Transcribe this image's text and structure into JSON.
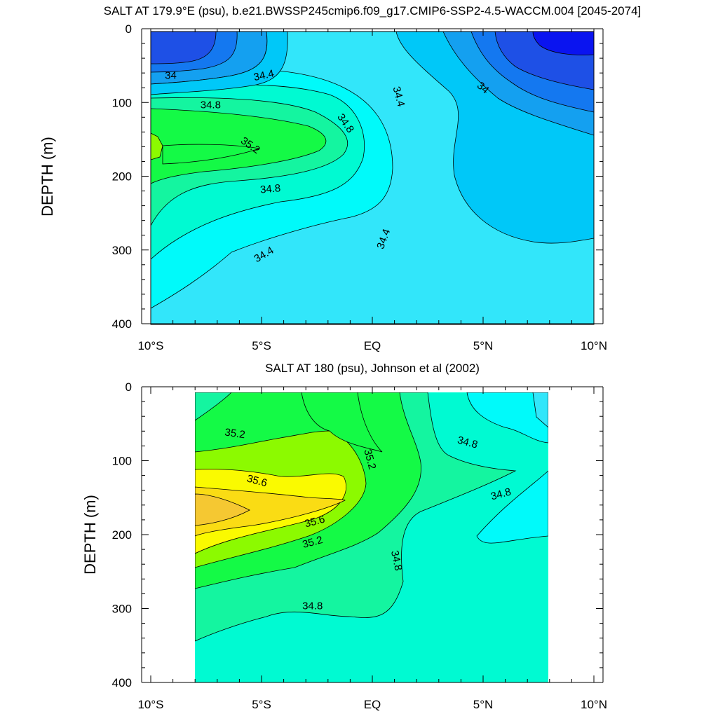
{
  "chart_data": [
    {
      "type": "contour",
      "title": "SALT AT 179.9°E (psu), b.e21.BWSSP245cmip6.f09_g17.CMIP6-SSP2-4.5-WACCM.004 [2045-2074]",
      "ylabel": "DEPTH (m)",
      "xticks": [
        "10°S",
        "5°S",
        "EQ",
        "5°N",
        "10°N"
      ],
      "yticks": [
        "0",
        "100",
        "200",
        "300",
        "400"
      ],
      "xlim": [
        -10,
        10
      ],
      "ylim": [
        400,
        0
      ],
      "data_extent": {
        "lon": [
          -10,
          10
        ],
        "depth": [
          5,
          400
        ]
      },
      "contour_labels": [
        {
          "text": "34",
          "lon": -9.1,
          "depth": 63,
          "rotate": 0
        },
        {
          "text": "34.4",
          "lon": -4.9,
          "depth": 63,
          "rotate": -12
        },
        {
          "text": "34.8",
          "lon": -7.3,
          "depth": 103,
          "rotate": 0
        },
        {
          "text": "35.2",
          "lon": -5.5,
          "depth": 158,
          "rotate": 35
        },
        {
          "text": "34.8",
          "lon": -1.2,
          "depth": 128,
          "rotate": 55
        },
        {
          "text": "34.4",
          "lon": 1.2,
          "depth": 92,
          "rotate": 75
        },
        {
          "text": "34",
          "lon": 5.0,
          "depth": 80,
          "rotate": 40
        },
        {
          "text": "34.8",
          "lon": -4.6,
          "depth": 217,
          "rotate": -5
        },
        {
          "text": "34.4",
          "lon": 0.5,
          "depth": 285,
          "rotate": -70
        },
        {
          "text": "34.4",
          "lon": -4.9,
          "depth": 306,
          "rotate": -30
        }
      ]
    },
    {
      "type": "contour",
      "title": "SALT AT 180 (psu), Johnson et al (2002)",
      "ylabel": "DEPTH (m)",
      "xticks": [
        "10°S",
        "5°S",
        "EQ",
        "5°N",
        "10°N"
      ],
      "yticks": [
        "0",
        "100",
        "200",
        "300",
        "400"
      ],
      "xlim": [
        -10,
        10
      ],
      "ylim": [
        400,
        0
      ],
      "data_extent": {
        "lon": [
          -8,
          8
        ],
        "depth": [
          5,
          400
        ]
      },
      "contour_labels": [
        {
          "text": "35.2",
          "lon": -6.2,
          "depth": 63,
          "rotate": 8
        },
        {
          "text": "35.2",
          "lon": -0.1,
          "depth": 98,
          "rotate": 75
        },
        {
          "text": "34.8",
          "lon": 4.3,
          "depth": 75,
          "rotate": 15
        },
        {
          "text": "35.6",
          "lon": -5.2,
          "depth": 127,
          "rotate": 15
        },
        {
          "text": "34.8",
          "lon": 5.8,
          "depth": 145,
          "rotate": -15
        },
        {
          "text": "35.6",
          "lon": -2.6,
          "depth": 182,
          "rotate": -15
        },
        {
          "text": "35.2",
          "lon": -2.7,
          "depth": 210,
          "rotate": -15
        },
        {
          "text": "34.8",
          "lon": 1.1,
          "depth": 235,
          "rotate": 78
        },
        {
          "text": "34.8",
          "lon": -2.7,
          "depth": 296,
          "rotate": 0
        }
      ]
    }
  ],
  "colors": {
    "deepblue": "#0a14f0",
    "blue": "#1e50e6",
    "medblue": "#1478f0",
    "lightblue": "#14a0f0",
    "sky": "#00c8f8",
    "cyan": "#32e6fa",
    "aqua": "#00fafa",
    "teal": "#00fad2",
    "seagreen": "#14f5a0",
    "green": "#14fa46",
    "lime": "#8cfa00",
    "yellow": "#fafa00",
    "gold": "#fadc14",
    "orange": "#f5c832"
  }
}
